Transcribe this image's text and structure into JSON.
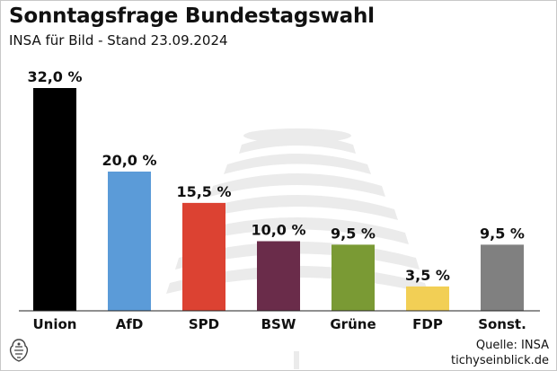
{
  "header": {
    "title": "Sonntagsfrage Bundestagswahl",
    "subtitle": "INSA für Bild - Stand 23.09.2024"
  },
  "source": {
    "line1": "Quelle: INSA",
    "line2": "tichyseinblick.de"
  },
  "logo": {
    "icon": "eagle-logo-icon"
  },
  "watermark": {
    "icon": "bundestag-dome-icon"
  },
  "chart_data": {
    "type": "bar",
    "categories": [
      "Union",
      "AfD",
      "SPD",
      "BSW",
      "Grüne",
      "FDP",
      "Sonst."
    ],
    "values": [
      32.0,
      20.0,
      15.5,
      10.0,
      9.5,
      3.5,
      9.5
    ],
    "value_labels": [
      "32,0 %",
      "20,0 %",
      "15,5 %",
      "10,0 %",
      "9,5 %",
      "3,5 %",
      "9,5 %"
    ],
    "colors": [
      "#000000",
      "#5b9bd8",
      "#dc4232",
      "#6a2c4a",
      "#7a9a34",
      "#f2cf55",
      "#808080"
    ],
    "title": "Sonntagsfrage Bundestagswahl",
    "xlabel": "",
    "ylabel": "",
    "ylim": [
      0,
      32
    ],
    "grid": false,
    "legend": "none"
  }
}
